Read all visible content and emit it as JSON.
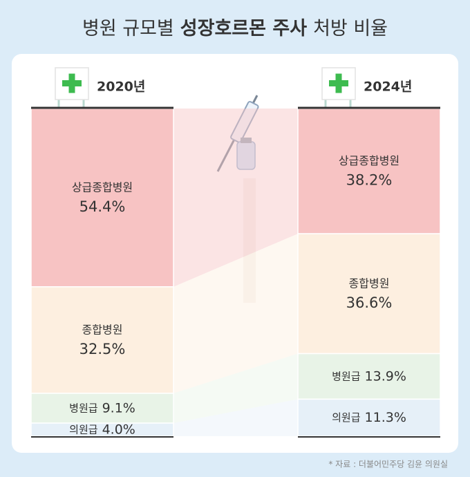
{
  "chart_data": {
    "type": "stacked-bar",
    "title": {
      "prefix": "병원 규모별",
      "emphasis": "성장호르몬 주사",
      "suffix": "처방 비율"
    },
    "categories": [
      "2020년",
      "2024년"
    ],
    "series": [
      {
        "name": "상급종합병원",
        "color": "#f7c3c3",
        "values": [
          54.4,
          38.2
        ],
        "value_labels": [
          "54.4%",
          "38.2%"
        ]
      },
      {
        "name": "종합병원",
        "color": "#fdefe0",
        "values": [
          32.5,
          36.6
        ],
        "value_labels": [
          "32.5%",
          "36.6%"
        ]
      },
      {
        "name": "병원급",
        "color": "#e8f3e7",
        "values": [
          9.1,
          13.9
        ],
        "value_labels": [
          "9.1%",
          "13.9%"
        ]
      },
      {
        "name": "의원급",
        "color": "#e6f0f8",
        "values": [
          4.0,
          11.3
        ],
        "value_labels": [
          "4.0%",
          "11.3%"
        ]
      }
    ],
    "source": "* 자료 : 더불어민주당 김윤 의원실"
  }
}
